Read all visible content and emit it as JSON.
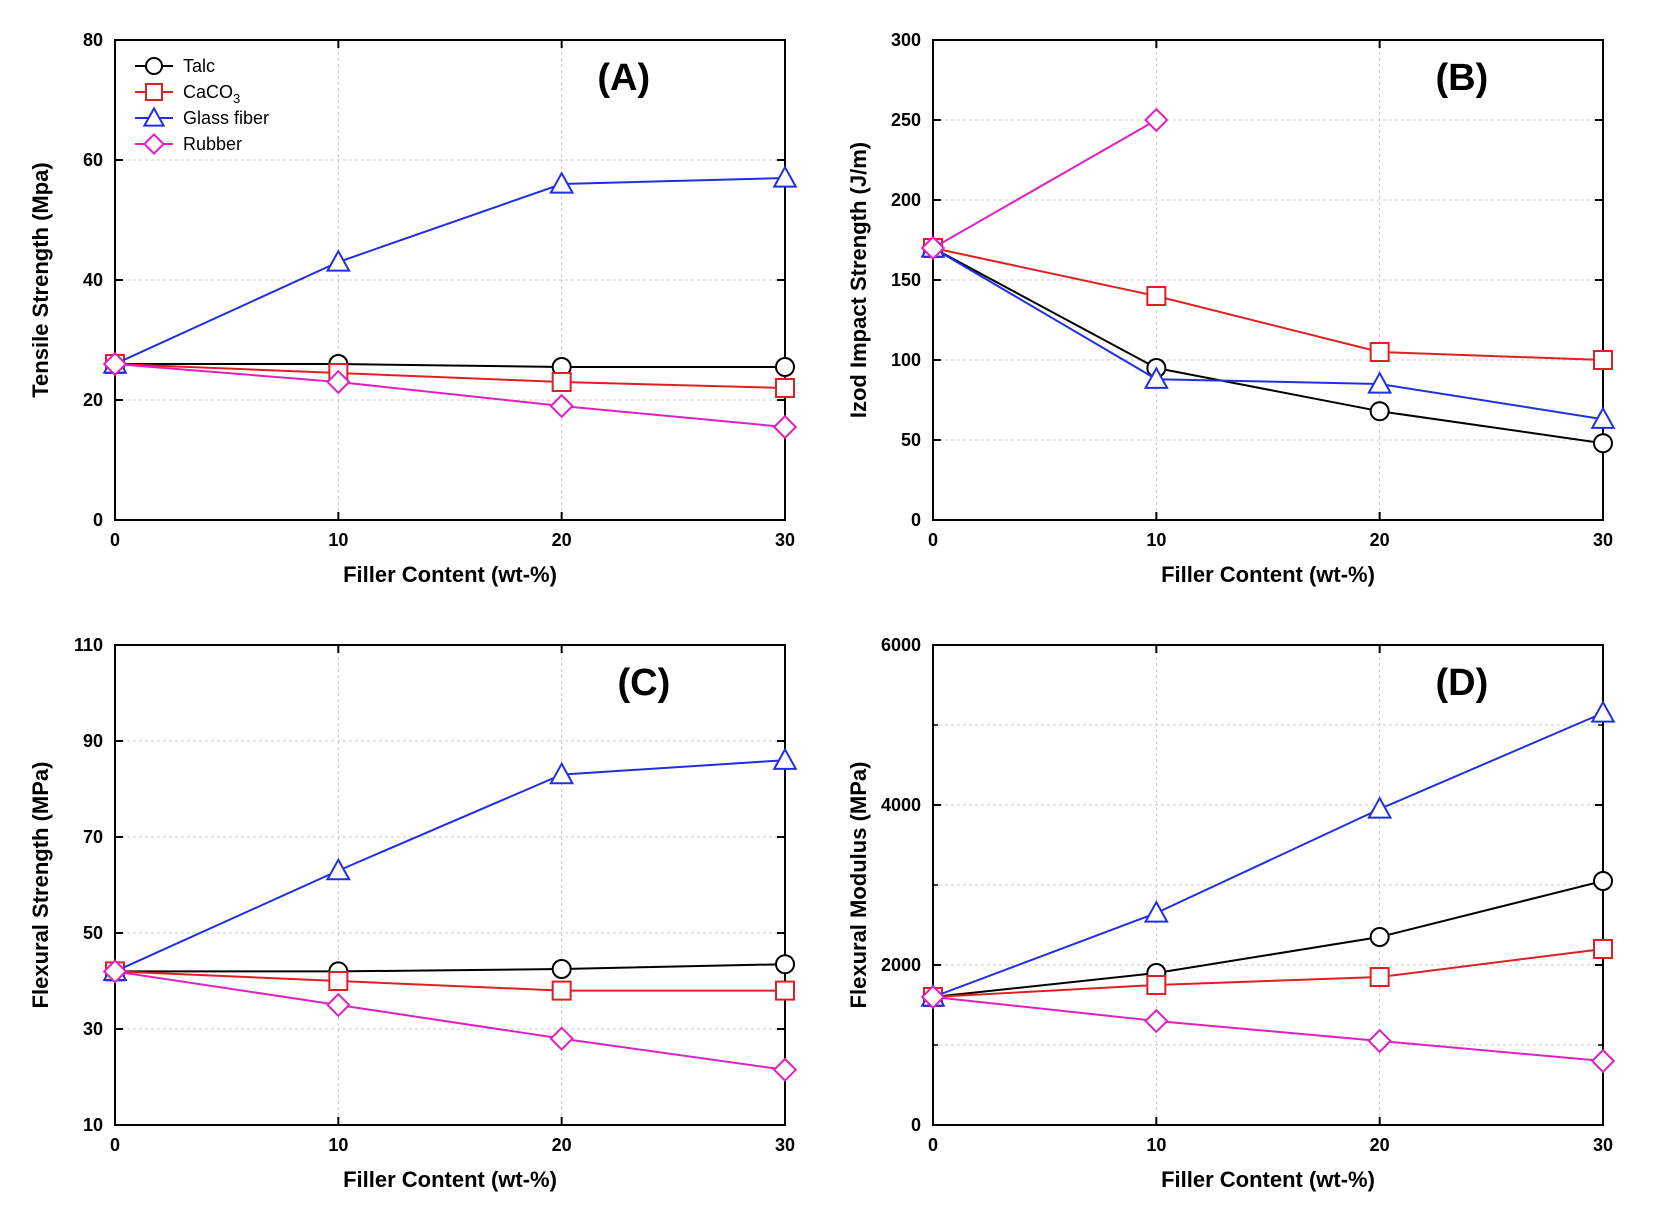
{
  "global": {
    "background_color": "#ffffff",
    "grid_color": "#c8c8c8",
    "axis_color": "#000000",
    "tick_font_size": 18,
    "label_font_size": 22,
    "panel_letter_font_size": 38,
    "legend_font_size": 18,
    "line_width": 2,
    "marker_size": 9,
    "xlabel": "Filler Content (wt-%)",
    "xvalues": [
      0,
      10,
      20,
      30
    ],
    "xlim": [
      0,
      30
    ],
    "series_meta": {
      "talc": {
        "label": "Talc",
        "color": "#000000",
        "marker": "circle"
      },
      "caco3": {
        "label": "CaCO",
        "sub": "3",
        "color": "#e02020",
        "marker": "square"
      },
      "glassfiber": {
        "label": "Glass fiber",
        "color": "#2030e0",
        "marker": "triangle"
      },
      "rubber": {
        "label": "Rubber",
        "color": "#e020c0",
        "marker": "diamond"
      }
    }
  },
  "panels": {
    "A": {
      "letter": "(A)",
      "ylabel": "Tensile Strength (Mpa)",
      "ylim": [
        0,
        80
      ],
      "yticks": [
        0,
        20,
        40,
        60,
        80
      ],
      "show_legend": true,
      "data": {
        "talc": [
          26,
          26,
          25.5,
          25.5
        ],
        "caco3": [
          26,
          24.5,
          23,
          22
        ],
        "glassfiber": [
          26,
          43,
          56,
          57
        ],
        "rubber": [
          26,
          23,
          19,
          15.5
        ]
      }
    },
    "B": {
      "letter": "(B)",
      "ylabel": "Izod Impact Strength (J/m)",
      "ylim": [
        0,
        300
      ],
      "yticks": [
        0,
        50,
        100,
        150,
        200,
        250,
        300
      ],
      "show_legend": false,
      "data": {
        "talc": [
          170,
          95,
          68,
          48
        ],
        "caco3": [
          170,
          140,
          105,
          100
        ],
        "glassfiber": [
          170,
          88,
          85,
          63
        ],
        "rubber": [
          170,
          250
        ]
      }
    },
    "C": {
      "letter": "(C)",
      "ylabel": "Flexural Strength (MPa)",
      "ylim": [
        10,
        110
      ],
      "yticks": [
        10,
        30,
        50,
        70,
        90,
        110
      ],
      "show_legend": false,
      "data": {
        "talc": [
          42,
          42,
          42.5,
          43.5
        ],
        "caco3": [
          42,
          40,
          38,
          38
        ],
        "glassfiber": [
          42,
          63,
          83,
          86
        ],
        "rubber": [
          42,
          35,
          28,
          21.5
        ]
      }
    },
    "D": {
      "letter": "(D)",
      "ylabel": "Flexural Modulus (MPa)",
      "ylim": [
        0,
        6000
      ],
      "yticks": [
        0,
        2000,
        4000,
        6000
      ],
      "yminor": [
        1000,
        3000,
        5000
      ],
      "show_legend": false,
      "data": {
        "talc": [
          1600,
          1900,
          2350,
          3050
        ],
        "caco3": [
          1600,
          1750,
          1850,
          2200
        ],
        "glassfiber": [
          1600,
          2650,
          3950,
          5150
        ],
        "rubber": [
          1600,
          1300,
          1050,
          800
        ]
      }
    }
  }
}
